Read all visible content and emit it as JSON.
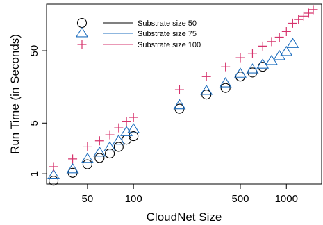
{
  "chart_data": {
    "type": "scatter",
    "title": "",
    "xlabel": "CloudNet Size",
    "ylabel": "Run Time (in Seconds)",
    "xscale": "log",
    "yscale": "log",
    "xlim": [
      27,
      1700
    ],
    "ylim": [
      0.72,
      220
    ],
    "xticks": [
      50,
      100,
      500,
      1000
    ],
    "xtick_labels": [
      "50",
      "100",
      "500",
      "1000"
    ],
    "yticks": [
      1,
      5,
      50
    ],
    "ytick_labels": [
      "1",
      "5",
      "50"
    ],
    "grid": false,
    "legend_position": "top-left",
    "series": [
      {
        "name": "Substrate size 50",
        "marker": "circle",
        "color": "#000000",
        "x": [
          30,
          40,
          50,
          60,
          70,
          80,
          90,
          100,
          200,
          300,
          400,
          500,
          600,
          700
        ],
        "y": [
          0.8,
          1.03,
          1.35,
          1.65,
          1.9,
          2.35,
          2.95,
          3.3,
          7.9,
          12.4,
          15.3,
          22,
          25,
          30
        ]
      },
      {
        "name": "Substrate size 75",
        "marker": "triangle",
        "color": "#1f6fbf",
        "x": [
          30,
          40,
          50,
          60,
          70,
          80,
          90,
          100,
          200,
          300,
          400,
          500,
          600,
          700,
          800,
          900,
          1000,
          1100
        ],
        "y": [
          0.95,
          1.15,
          1.6,
          1.95,
          2.3,
          2.85,
          3.75,
          4.1,
          8.8,
          13.9,
          17.7,
          24,
          27.5,
          32,
          36,
          42,
          48,
          62
        ]
      },
      {
        "name": "Substrate size 100",
        "marker": "plus",
        "color": "#d6336c",
        "x": [
          30,
          40,
          50,
          60,
          70,
          80,
          90,
          100,
          200,
          300,
          400,
          500,
          600,
          700,
          800,
          900,
          1000,
          1100,
          1200,
          1300,
          1400,
          1500
        ],
        "y": [
          1.25,
          1.6,
          2.35,
          2.85,
          3.45,
          4.3,
          5.3,
          6.0,
          14.5,
          22,
          30,
          40,
          46,
          58,
          67,
          77,
          92,
          120,
          135,
          150,
          165,
          185
        ]
      }
    ]
  }
}
